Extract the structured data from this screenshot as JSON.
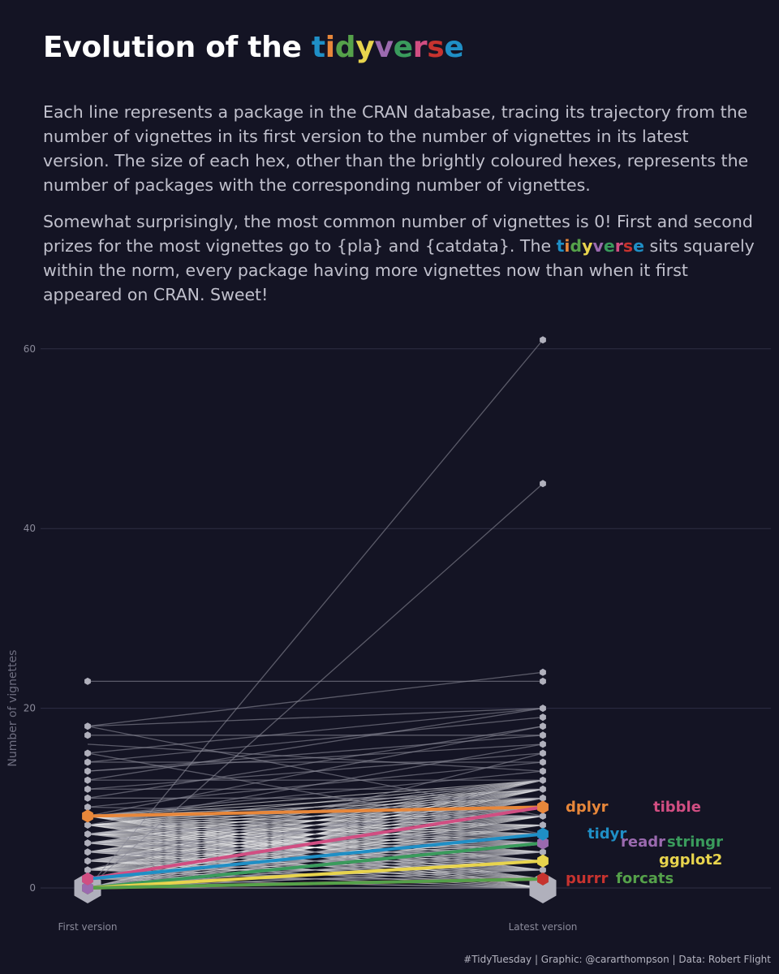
{
  "title": {
    "prefix": "Evolution of the ",
    "brand_letters": [
      {
        "ch": "t",
        "color": "#1f8fc6"
      },
      {
        "ch": "i",
        "color": "#e8873a"
      },
      {
        "ch": "d",
        "color": "#55a14a"
      },
      {
        "ch": "y",
        "color": "#e8d44d"
      },
      {
        "ch": "v",
        "color": "#9b6aaf"
      },
      {
        "ch": "e",
        "color": "#3a9b5c"
      },
      {
        "ch": "r",
        "color": "#d14e82"
      },
      {
        "ch": "s",
        "color": "#c7332f"
      },
      {
        "ch": "e",
        "color": "#1f8fc6"
      }
    ]
  },
  "paragraph1": "Each line represents a package in the CRAN database, tracing its trajectory from the number of vignettes in its first version to the number of vignettes in its latest version. The size of each hex, other than the brightly coloured hexes, represents the number of packages with the corresponding number of vignettes.",
  "paragraph2": {
    "before": "Somewhat surprisingly, the most common number of vignettes is 0! First and second prizes for the most vignettes go to {pla} and {catdata}. The ",
    "after": " sits squarely within the norm, every package having more vignettes now than when it first appeared on CRAN. Sweet!"
  },
  "caption": "#TidyTuesday | Graphic: @cararthompson | Data: Robert Flight",
  "colors": {
    "background": "#141424",
    "grid": "#2e2e44",
    "grey_line": "#8a8a98",
    "white_line": "#ffffff",
    "hex": "#b0b0bc"
  },
  "chart_data": {
    "type": "line",
    "ylabel": "Number of vignettes",
    "xlabel": "",
    "categories": [
      "First version",
      "Latest version"
    ],
    "ylim": [
      -2,
      63
    ],
    "yticks": [
      0,
      20,
      40,
      60
    ],
    "grid": true,
    "background_packages": [
      {
        "values": [
          0,
          61
        ]
      },
      {
        "values": [
          0,
          45
        ]
      },
      {
        "values": [
          23,
          23
        ]
      },
      {
        "values": [
          18,
          24
        ]
      },
      {
        "values": [
          18,
          20
        ]
      },
      {
        "values": [
          17,
          17
        ]
      },
      {
        "values": [
          15,
          20
        ]
      },
      {
        "values": [
          14,
          19
        ]
      },
      {
        "values": [
          13,
          16
        ]
      },
      {
        "values": [
          11,
          15
        ]
      },
      {
        "values": [
          10,
          18
        ]
      },
      {
        "values": [
          9,
          14
        ]
      },
      {
        "values": [
          8,
          13
        ]
      },
      {
        "values": [
          6,
          12
        ]
      },
      {
        "values": [
          5,
          11
        ]
      },
      {
        "values": [
          3,
          10
        ]
      },
      {
        "values": [
          2,
          15
        ]
      },
      {
        "values": [
          1,
          12
        ]
      },
      {
        "values": [
          0,
          10
        ]
      },
      {
        "values": [
          18,
          8
        ]
      },
      {
        "values": [
          15,
          6
        ]
      },
      {
        "values": [
          14,
          14
        ]
      },
      {
        "values": [
          12,
          12
        ]
      },
      {
        "values": [
          11,
          11
        ]
      },
      {
        "values": [
          10,
          10
        ]
      },
      {
        "values": [
          7,
          16
        ]
      },
      {
        "values": [
          9,
          8
        ]
      },
      {
        "values": [
          4,
          9
        ]
      },
      {
        "values": [
          3,
          7
        ]
      },
      {
        "values": [
          2,
          6
        ]
      },
      {
        "values": [
          1,
          5
        ]
      },
      {
        "values": [
          0,
          4
        ]
      },
      {
        "values": [
          5,
          3
        ]
      },
      {
        "values": [
          4,
          2
        ]
      },
      {
        "values": [
          6,
          1
        ]
      },
      {
        "values": [
          2,
          0
        ]
      },
      {
        "values": [
          1,
          1
        ]
      },
      {
        "values": [
          0,
          2
        ]
      },
      {
        "values": [
          3,
          3
        ]
      },
      {
        "values": [
          0,
          0
        ]
      },
      {
        "values": [
          16,
          13
        ]
      },
      {
        "values": [
          13,
          17
        ]
      },
      {
        "values": [
          12,
          20
        ]
      },
      {
        "values": [
          8,
          18
        ]
      },
      {
        "values": [
          7,
          5
        ]
      },
      {
        "values": [
          6,
          8
        ]
      },
      {
        "values": [
          5,
          6
        ]
      },
      {
        "values": [
          4,
          4
        ]
      }
    ],
    "highlighted": [
      {
        "name": "dplyr",
        "values": [
          8,
          9
        ],
        "color": "#e8873a"
      },
      {
        "name": "tibble",
        "values": [
          1,
          9
        ],
        "color": "#d14e82"
      },
      {
        "name": "tidyr",
        "values": [
          1,
          6
        ],
        "color": "#1f8fc6"
      },
      {
        "name": "readr",
        "values": [
          0,
          5
        ],
        "color": "#9b6aaf"
      },
      {
        "name": "stringr",
        "values": [
          0,
          5
        ],
        "color": "#3a9b5c"
      },
      {
        "name": "ggplot2",
        "values": [
          0,
          3
        ],
        "color": "#e8d44d"
      },
      {
        "name": "purrr",
        "values": [
          0,
          1
        ],
        "color": "#c7332f"
      },
      {
        "name": "forcats",
        "values": [
          0,
          1
        ],
        "color": "#55a14a"
      }
    ],
    "first_version_hex_values": [
      0,
      1,
      2,
      3,
      4,
      5,
      6,
      7,
      8,
      9,
      10,
      11,
      12,
      13,
      14,
      15,
      17,
      18,
      23
    ],
    "latest_version_hex_values": [
      0,
      1,
      2,
      3,
      4,
      5,
      6,
      7,
      8,
      9,
      10,
      11,
      12,
      13,
      14,
      15,
      16,
      17,
      18,
      19,
      20,
      23,
      24,
      45,
      61
    ]
  }
}
